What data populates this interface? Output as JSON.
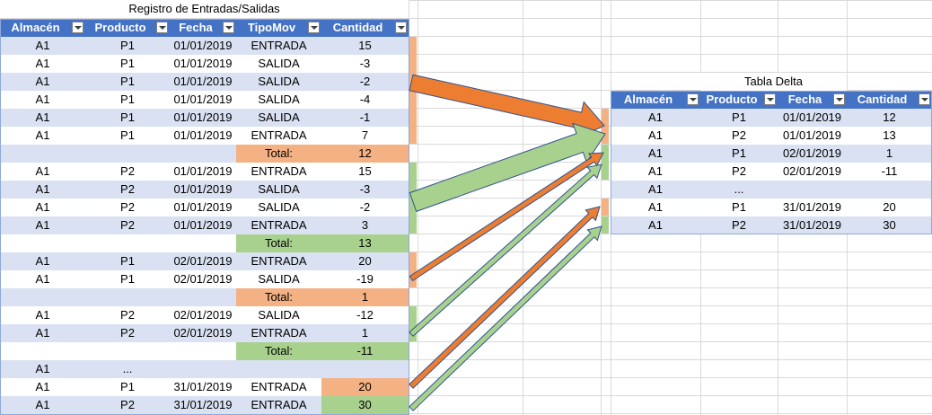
{
  "colors": {
    "header": "#4472c4",
    "band": "#d9e1f2",
    "orange": "#f4b183",
    "green": "#a9d18e",
    "arrow_orange": "#ed7d31",
    "arrow_green": "#a9d18e"
  },
  "left_table": {
    "title": "Registro de Entradas/Salidas",
    "headers": [
      "Almacén",
      "Producto",
      "Fecha",
      "TipoMov",
      "Cantidad"
    ],
    "rows": [
      {
        "kind": "data",
        "cells": [
          "A1",
          "P1",
          "01/01/2019",
          "ENTRADA",
          "15"
        ]
      },
      {
        "kind": "data",
        "cells": [
          "A1",
          "P1",
          "01/01/2019",
          "SALIDA",
          "-3"
        ]
      },
      {
        "kind": "data",
        "cells": [
          "A1",
          "P1",
          "01/01/2019",
          "SALIDA",
          "-2"
        ]
      },
      {
        "kind": "data",
        "cells": [
          "A1",
          "P1",
          "01/01/2019",
          "SALIDA",
          "-4"
        ]
      },
      {
        "kind": "data",
        "cells": [
          "A1",
          "P1",
          "01/01/2019",
          "SALIDA",
          "-1"
        ]
      },
      {
        "kind": "data",
        "cells": [
          "A1",
          "P1",
          "01/01/2019",
          "ENTRADA",
          "7"
        ]
      },
      {
        "kind": "total",
        "label": "Total:",
        "value": "12",
        "color": "orange"
      },
      {
        "kind": "data",
        "cells": [
          "A1",
          "P2",
          "01/01/2019",
          "ENTRADA",
          "15"
        ]
      },
      {
        "kind": "data",
        "cells": [
          "A1",
          "P2",
          "01/01/2019",
          "SALIDA",
          "-3"
        ]
      },
      {
        "kind": "data",
        "cells": [
          "A1",
          "P2",
          "01/01/2019",
          "SALIDA",
          "-2"
        ]
      },
      {
        "kind": "data",
        "cells": [
          "A1",
          "P2",
          "01/01/2019",
          "ENTRADA",
          "3"
        ]
      },
      {
        "kind": "total",
        "label": "Total:",
        "value": "13",
        "color": "green"
      },
      {
        "kind": "data",
        "cells": [
          "A1",
          "P1",
          "02/01/2019",
          "ENTRADA",
          "20"
        ]
      },
      {
        "kind": "data",
        "cells": [
          "A1",
          "P1",
          "02/01/2019",
          "SALIDA",
          "-19"
        ]
      },
      {
        "kind": "total",
        "label": "Total:",
        "value": "1",
        "color": "orange"
      },
      {
        "kind": "data",
        "cells": [
          "A1",
          "P2",
          "02/01/2019",
          "SALIDA",
          "-12"
        ]
      },
      {
        "kind": "data",
        "cells": [
          "A1",
          "P2",
          "02/01/2019",
          "ENTRADA",
          "1"
        ]
      },
      {
        "kind": "total",
        "label": "Total:",
        "value": "-11",
        "color": "green"
      },
      {
        "kind": "data",
        "cells": [
          "A1",
          "...",
          "",
          "",
          ""
        ]
      },
      {
        "kind": "data",
        "cells": [
          "A1",
          "P1",
          "31/01/2019",
          "ENTRADA",
          "20"
        ],
        "qtyColor": "orange"
      },
      {
        "kind": "data",
        "cells": [
          "A1",
          "P2",
          "31/01/2019",
          "ENTRADA",
          "30"
        ],
        "qtyColor": "green"
      }
    ]
  },
  "right_table": {
    "title": "Tabla Delta",
    "headers": [
      "Almacén",
      "Producto",
      "Fecha",
      "Cantidad"
    ],
    "rows": [
      [
        "A1",
        "P1",
        "01/01/2019",
        "12"
      ],
      [
        "A1",
        "P2",
        "01/01/2019",
        "13"
      ],
      [
        "A1",
        "P1",
        "02/01/2019",
        "1"
      ],
      [
        "A1",
        "P2",
        "02/01/2019",
        "-11"
      ],
      [
        "A1",
        "...",
        "",
        ""
      ],
      [
        "A1",
        "P1",
        "31/01/2019",
        "20"
      ],
      [
        "A1",
        "P2",
        "31/01/2019",
        "30"
      ]
    ]
  }
}
